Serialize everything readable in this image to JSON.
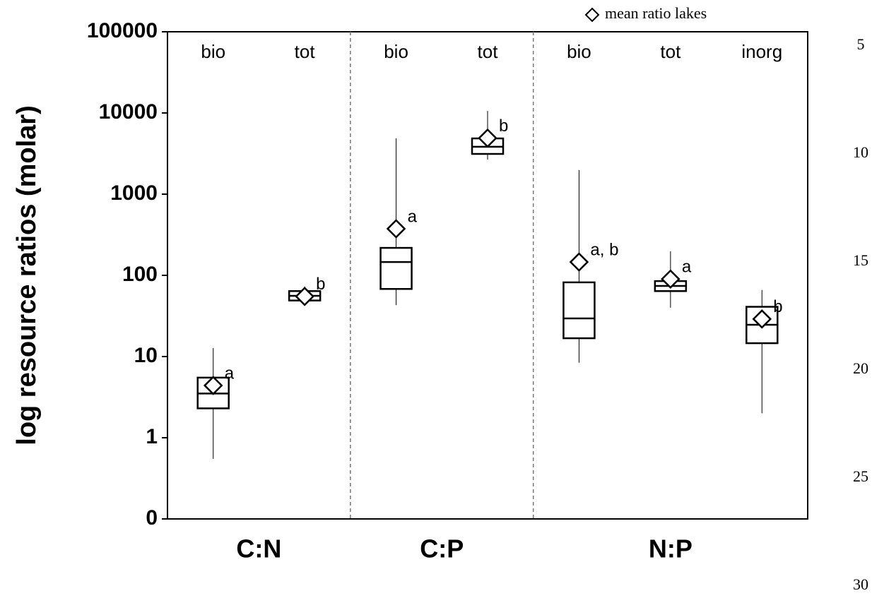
{
  "chart_data": {
    "type": "box",
    "y_label": "log resource ratios (molar)",
    "log": true,
    "ylim": [
      0.1,
      100000
    ],
    "yticks": [
      {
        "value": 0.1,
        "label": "0"
      },
      1,
      10,
      100,
      1000,
      10000,
      100000
    ],
    "legend": {
      "label": "mean ratio lakes",
      "position": "top-right"
    },
    "color": "#000000",
    "groups": [
      {
        "label": "C:N",
        "boxes": [
          {
            "category": "bio",
            "whislo": 0.55,
            "q1": 2.3,
            "med": 3.5,
            "q3": 5.5,
            "whishi": 12.7,
            "mean": 4.4,
            "letter": "a"
          },
          {
            "category": "tot",
            "whislo": 43,
            "q1": 49,
            "med": 56,
            "q3": 64,
            "whishi": 73,
            "mean": 55,
            "letter": "b"
          }
        ]
      },
      {
        "label": "C:P",
        "boxes": [
          {
            "category": "bio",
            "whislo": 43,
            "q1": 68,
            "med": 146,
            "q3": 218,
            "whishi": 4860,
            "mean": 375,
            "letter": "a"
          },
          {
            "category": "tot",
            "whislo": 2670,
            "q1": 3130,
            "med": 3830,
            "q3": 4860,
            "whishi": 10600,
            "mean": 4900,
            "letter": "b"
          }
        ]
      },
      {
        "label": "N:P",
        "boxes": [
          {
            "category": "bio",
            "whislo": 8.4,
            "q1": 16.8,
            "med": 29.5,
            "q3": 82,
            "whishi": 1980,
            "mean": 146,
            "letter": "a, b"
          },
          {
            "category": "tot",
            "whislo": 40,
            "q1": 64,
            "med": 74,
            "q3": 85,
            "whishi": 198,
            "mean": 90,
            "letter": "a"
          },
          {
            "category": "inorg",
            "whislo": 2.0,
            "q1": 14.6,
            "med": 24.6,
            "q3": 41,
            "whishi": 66,
            "mean": 29,
            "letter": "b"
          }
        ]
      }
    ]
  },
  "line_numbers": [
    5,
    10,
    15,
    20,
    25,
    30
  ]
}
